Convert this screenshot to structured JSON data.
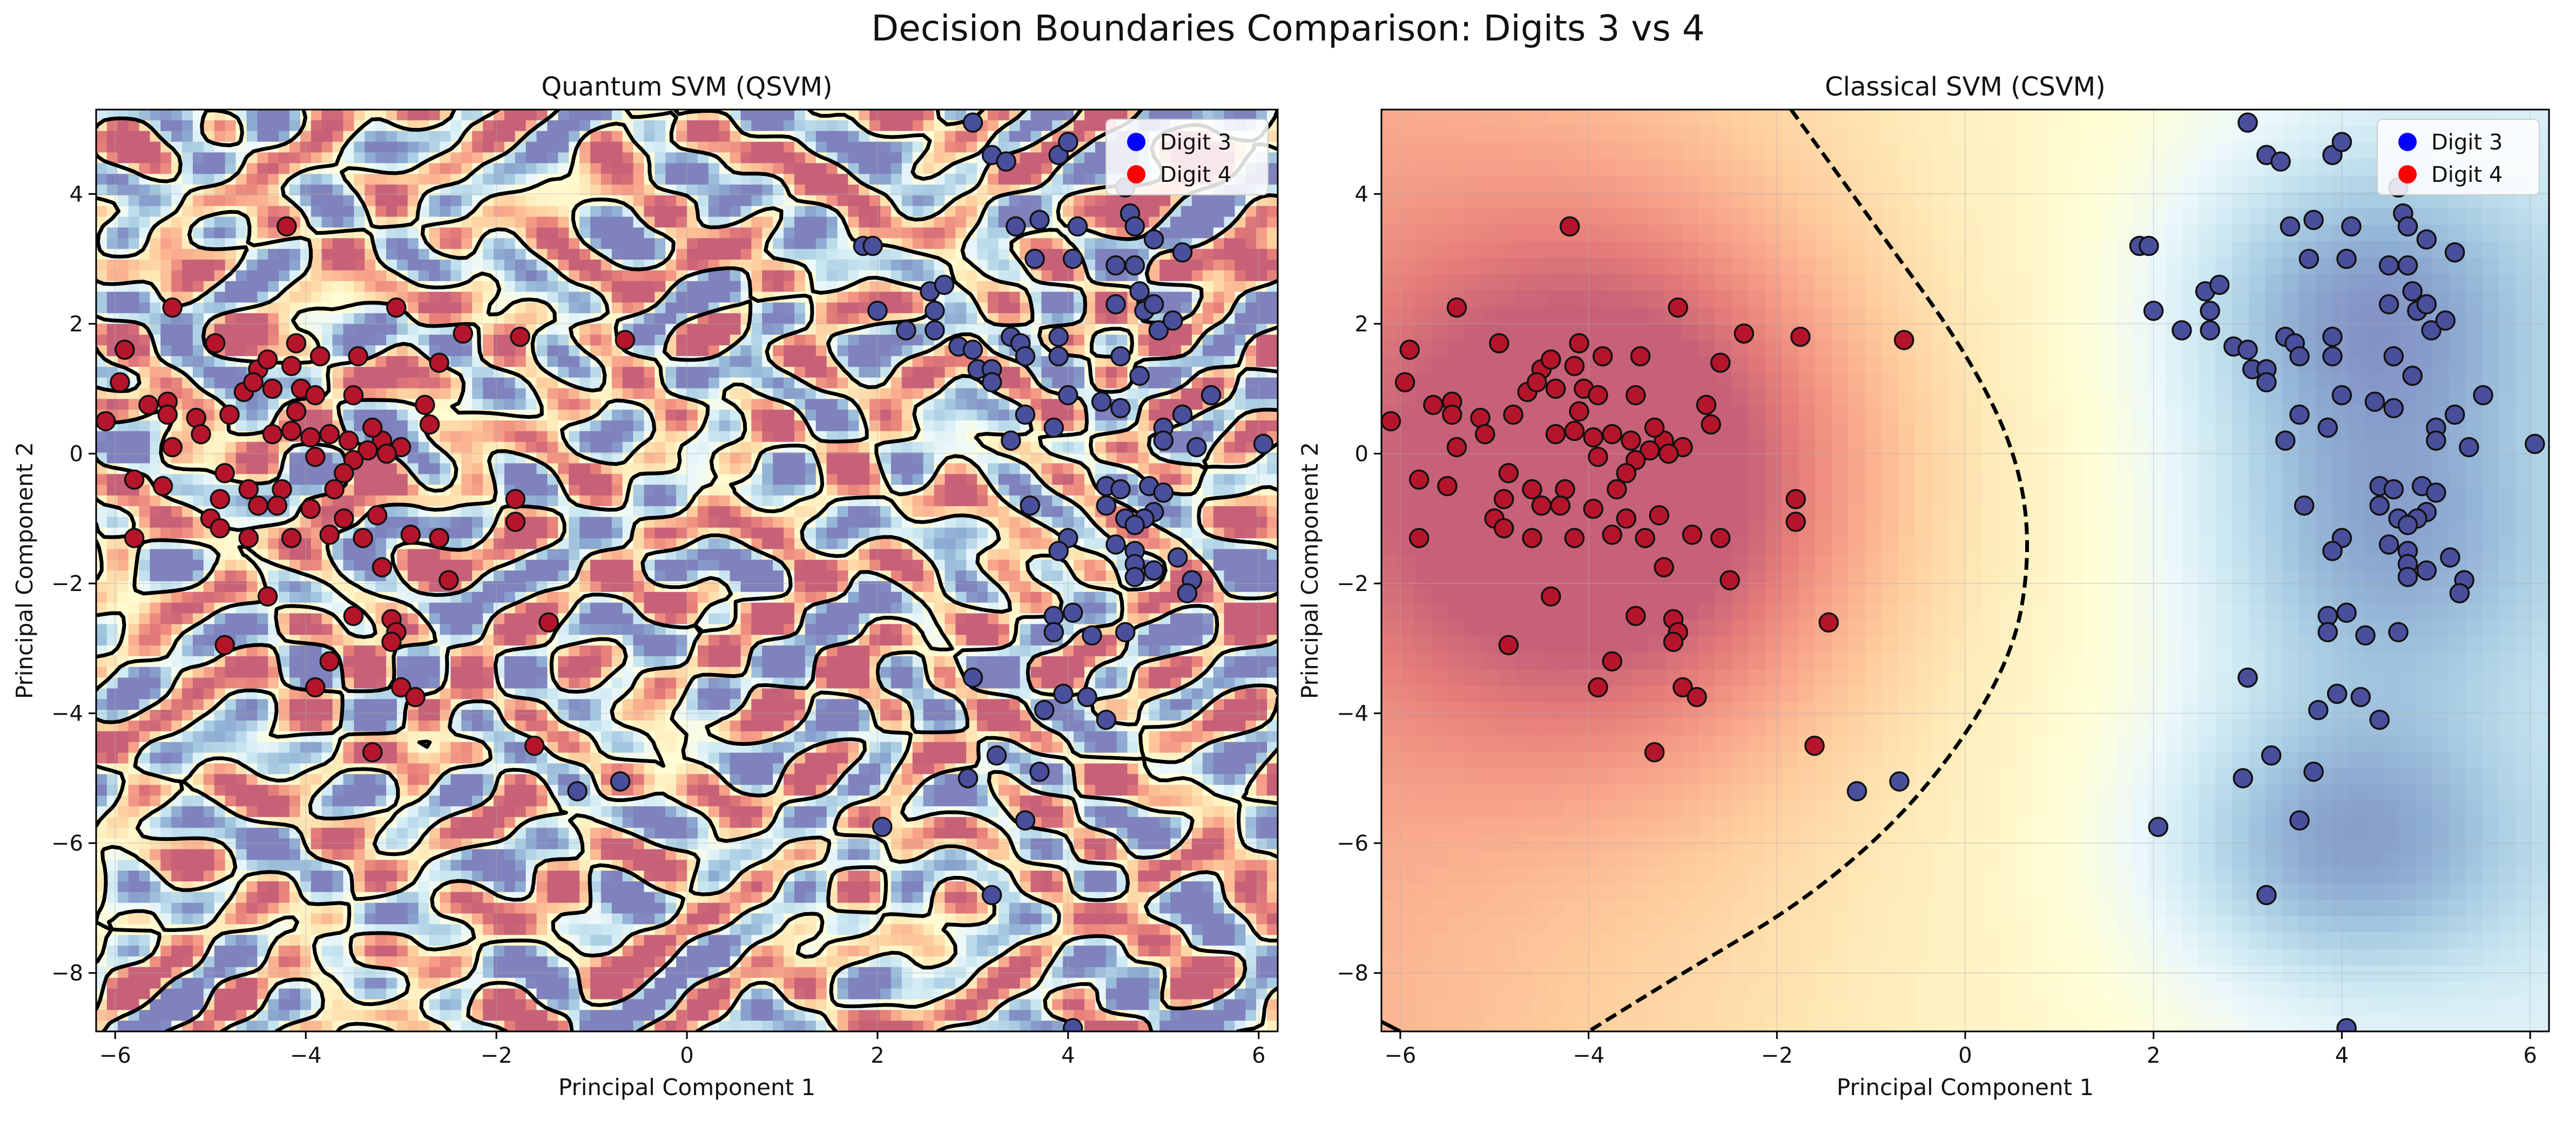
{
  "figure": {
    "title": "Decision Boundaries Comparison: Digits 3 vs 4"
  },
  "colors": {
    "digit3": "#4a4f9c",
    "digit4": "#b5152b",
    "legend3": "#0000ff",
    "legend4": "#ff0000",
    "map_low": "#313695",
    "map_mid": "#ffffbf",
    "map_high": "#a50026"
  },
  "chart_data": [
    {
      "type": "scatter",
      "title": "Quantum SVM (QSVM)",
      "xlabel": "Principal Component 1",
      "ylabel": "Principal Component 2",
      "xlim": [
        -6.2,
        6.2
      ],
      "ylim": [
        -8.9,
        5.3
      ],
      "xticks": [
        -6,
        -4,
        -2,
        0,
        2,
        4,
        6
      ],
      "yticks": [
        -8,
        -6,
        -4,
        -2,
        0,
        2,
        4
      ],
      "grid": true,
      "legend": "top-right",
      "background": "decision function contour (RdYlBu), highly irregular",
      "boundary": "dashed black contour at decision value 0",
      "series": [
        {
          "name": "Digit 3",
          "points": [
            [
              3.0,
              5.1
            ],
            [
              3.2,
              4.6
            ],
            [
              3.35,
              4.5
            ],
            [
              3.9,
              4.6
            ],
            [
              4.0,
              4.8
            ],
            [
              4.6,
              4.1
            ],
            [
              3.45,
              3.5
            ],
            [
              3.7,
              3.6
            ],
            [
              4.1,
              3.5
            ],
            [
              4.65,
              3.7
            ],
            [
              4.7,
              3.5
            ],
            [
              4.9,
              3.3
            ],
            [
              4.7,
              2.9
            ],
            [
              3.65,
              3.0
            ],
            [
              4.05,
              3.0
            ],
            [
              4.5,
              2.9
            ],
            [
              5.2,
              3.1
            ],
            [
              1.85,
              3.2
            ],
            [
              1.95,
              3.2
            ],
            [
              2.55,
              2.5
            ],
            [
              2.6,
              2.2
            ],
            [
              2.7,
              2.6
            ],
            [
              4.5,
              2.3
            ],
            [
              4.75,
              2.5
            ],
            [
              4.8,
              2.2
            ],
            [
              4.9,
              2.3
            ],
            [
              4.95,
              1.9
            ],
            [
              5.1,
              2.05
            ],
            [
              2.0,
              2.2
            ],
            [
              2.3,
              1.9
            ],
            [
              2.6,
              1.9
            ],
            [
              2.85,
              1.65
            ],
            [
              3.0,
              1.6
            ],
            [
              3.05,
              1.3
            ],
            [
              3.4,
              1.8
            ],
            [
              3.5,
              1.7
            ],
            [
              3.55,
              1.5
            ],
            [
              3.2,
              1.3
            ],
            [
              3.2,
              1.1
            ],
            [
              3.9,
              1.8
            ],
            [
              3.9,
              1.5
            ],
            [
              4.55,
              1.5
            ],
            [
              4.75,
              1.2
            ],
            [
              4.0,
              0.9
            ],
            [
              4.35,
              0.8
            ],
            [
              4.55,
              0.7
            ],
            [
              5.5,
              0.9
            ],
            [
              3.55,
              0.6
            ],
            [
              3.85,
              0.4
            ],
            [
              3.4,
              0.2
            ],
            [
              5.0,
              0.4
            ],
            [
              5.2,
              0.6
            ],
            [
              5.0,
              0.2
            ],
            [
              5.35,
              0.1
            ],
            [
              6.05,
              0.15
            ],
            [
              4.4,
              -0.5
            ],
            [
              4.55,
              -0.55
            ],
            [
              4.85,
              -0.5
            ],
            [
              5.0,
              -0.6
            ],
            [
              3.6,
              -0.8
            ],
            [
              4.4,
              -0.8
            ],
            [
              4.6,
              -1.0
            ],
            [
              4.9,
              -0.9
            ],
            [
              4.8,
              -1.0
            ],
            [
              4.7,
              -1.1
            ],
            [
              4.0,
              -1.3
            ],
            [
              4.5,
              -1.4
            ],
            [
              3.9,
              -1.5
            ],
            [
              4.7,
              -1.5
            ],
            [
              4.7,
              -1.7
            ],
            [
              4.9,
              -1.8
            ],
            [
              5.15,
              -1.6
            ],
            [
              5.3,
              -1.95
            ],
            [
              5.25,
              -2.15
            ],
            [
              4.7,
              -1.9
            ],
            [
              3.85,
              -2.5
            ],
            [
              3.85,
              -2.75
            ],
            [
              4.05,
              -2.45
            ],
            [
              4.25,
              -2.8
            ],
            [
              4.6,
              -2.75
            ],
            [
              3.0,
              -3.45
            ],
            [
              3.75,
              -3.95
            ],
            [
              3.95,
              -3.7
            ],
            [
              4.2,
              -3.75
            ],
            [
              4.4,
              -4.1
            ],
            [
              3.7,
              -4.9
            ],
            [
              3.25,
              -4.65
            ],
            [
              2.95,
              -5.0
            ],
            [
              3.55,
              -5.65
            ],
            [
              2.05,
              -5.75
            ],
            [
              3.2,
              -6.8
            ],
            [
              4.05,
              -8.85
            ],
            [
              -1.15,
              -5.2
            ],
            [
              -0.7,
              -5.05
            ]
          ]
        },
        {
          "name": "Digit 4",
          "points": [
            [
              -6.1,
              0.5
            ],
            [
              -5.95,
              1.1
            ],
            [
              -5.9,
              1.6
            ],
            [
              -5.4,
              2.25
            ],
            [
              -4.95,
              1.7
            ],
            [
              -4.5,
              1.3
            ],
            [
              -4.2,
              3.5
            ],
            [
              -4.1,
              1.7
            ],
            [
              -4.15,
              1.35
            ],
            [
              -3.85,
              1.5
            ],
            [
              -3.45,
              1.5
            ],
            [
              -3.05,
              2.25
            ],
            [
              -2.35,
              1.85
            ],
            [
              -2.6,
              1.4
            ],
            [
              -1.75,
              1.8
            ],
            [
              -0.65,
              1.75
            ],
            [
              -4.4,
              1.45
            ],
            [
              -4.65,
              0.95
            ],
            [
              -4.55,
              1.1
            ],
            [
              -4.35,
              1.0
            ],
            [
              -4.05,
              1.0
            ],
            [
              -3.9,
              0.9
            ],
            [
              -3.5,
              0.9
            ],
            [
              -2.75,
              0.75
            ],
            [
              -5.65,
              0.75
            ],
            [
              -5.45,
              0.8
            ],
            [
              -5.45,
              0.6
            ],
            [
              -5.15,
              0.55
            ],
            [
              -4.8,
              0.6
            ],
            [
              -4.1,
              0.65
            ],
            [
              -4.15,
              0.35
            ],
            [
              -4.35,
              0.3
            ],
            [
              -3.95,
              0.25
            ],
            [
              -3.75,
              0.3
            ],
            [
              -3.55,
              0.2
            ],
            [
              -3.2,
              0.2
            ],
            [
              -3.0,
              0.1
            ],
            [
              -2.7,
              0.45
            ],
            [
              -3.3,
              0.4
            ],
            [
              -3.35,
              0.05
            ],
            [
              -3.15,
              0.0
            ],
            [
              -3.5,
              -0.1
            ],
            [
              -3.6,
              -0.3
            ],
            [
              -3.9,
              -0.05
            ],
            [
              -5.4,
              0.1
            ],
            [
              -5.1,
              0.3
            ],
            [
              -5.5,
              -0.5
            ],
            [
              -5.8,
              -0.4
            ],
            [
              -4.85,
              -0.3
            ],
            [
              -4.9,
              -0.7
            ],
            [
              -4.6,
              -0.55
            ],
            [
              -4.25,
              -0.55
            ],
            [
              -3.95,
              -0.85
            ],
            [
              -3.6,
              -1.0
            ],
            [
              -3.25,
              -0.95
            ],
            [
              -3.4,
              -1.3
            ],
            [
              -3.7,
              -0.55
            ],
            [
              -3.75,
              -1.25
            ],
            [
              -4.15,
              -1.3
            ],
            [
              -4.3,
              -0.8
            ],
            [
              -4.5,
              -0.8
            ],
            [
              -4.6,
              -1.3
            ],
            [
              -5.0,
              -1.0
            ],
            [
              -4.9,
              -1.15
            ],
            [
              -5.8,
              -1.3
            ],
            [
              -1.8,
              -0.7
            ],
            [
              -1.8,
              -1.05
            ],
            [
              -2.9,
              -1.25
            ],
            [
              -2.6,
              -1.3
            ],
            [
              -3.2,
              -1.75
            ],
            [
              -2.5,
              -1.95
            ],
            [
              -4.4,
              -2.2
            ],
            [
              -3.5,
              -2.5
            ],
            [
              -3.1,
              -2.55
            ],
            [
              -3.05,
              -2.75
            ],
            [
              -3.1,
              -2.9
            ],
            [
              -4.85,
              -2.95
            ],
            [
              -3.75,
              -3.2
            ],
            [
              -3.9,
              -3.6
            ],
            [
              -3.0,
              -3.6
            ],
            [
              -2.85,
              -3.75
            ],
            [
              -1.45,
              -2.6
            ],
            [
              -3.3,
              -4.6
            ],
            [
              -1.6,
              -4.5
            ]
          ]
        }
      ]
    },
    {
      "type": "scatter",
      "title": "Classical SVM (CSVM)",
      "xlabel": "Principal Component 1",
      "ylabel": "Principal Component 2",
      "xlim": [
        -6.2,
        6.2
      ],
      "ylim": [
        -8.9,
        5.3
      ],
      "xticks": [
        -6,
        -4,
        -2,
        0,
        2,
        4,
        6
      ],
      "yticks": [
        -8,
        -6,
        -4,
        -2,
        0,
        2,
        4
      ],
      "grid": true,
      "legend": "top-right",
      "background": "decision function contour (RdYlBu), smooth",
      "boundary": "dashed black curve: decision value 0, crossing x = 0.7 at y = -1.5",
      "series_same_as_panel": 0
    }
  ]
}
